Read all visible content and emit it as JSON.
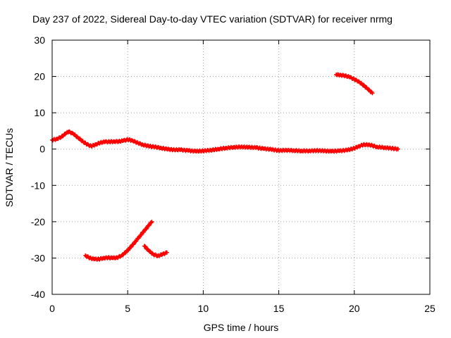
{
  "chart_data": {
    "type": "scatter",
    "title": "Day 237 of 2022, Sidereal Day-to-day VTEC variation (SDTVAR) for receiver nrmg",
    "xlabel": "GPS time / hours",
    "ylabel": "SDTVAR / TECUs",
    "xlim": [
      0,
      25
    ],
    "ylim": [
      -40,
      30
    ],
    "xticks": [
      0,
      5,
      10,
      15,
      20,
      25
    ],
    "yticks": [
      -40,
      -30,
      -20,
      -10,
      0,
      10,
      20,
      30
    ],
    "xtick_labels": [
      "0",
      "5",
      "10",
      "15",
      "20",
      "25"
    ],
    "ytick_labels": [
      "-40",
      "-30",
      "-20",
      "-10",
      "0",
      "10",
      "20",
      "30"
    ],
    "grid": true,
    "marker_color": "#ff0000",
    "series": [
      {
        "name": "main trace",
        "x": [
          0.0,
          0.3,
          0.6,
          0.9,
          1.1,
          1.4,
          1.7,
          2.0,
          2.3,
          2.6,
          2.9,
          3.2,
          3.5,
          3.8,
          4.1,
          4.4,
          4.7,
          5.0,
          5.3,
          5.6,
          6.0,
          6.4,
          6.8,
          7.2,
          7.6,
          8.0,
          8.5,
          9.0,
          9.5,
          10.0,
          10.5,
          11.0,
          11.5,
          12.0,
          12.5,
          13.0,
          13.5,
          14.0,
          14.5,
          15.0,
          15.5,
          16.0,
          16.5,
          17.0,
          17.5,
          18.0,
          18.5,
          19.0,
          19.5,
          20.0,
          20.3,
          20.6,
          21.0,
          21.5,
          22.0,
          22.5,
          22.9
        ],
        "y": [
          2.5,
          2.8,
          3.3,
          4.3,
          4.8,
          4.2,
          3.2,
          2.2,
          1.3,
          0.8,
          1.3,
          1.8,
          2.0,
          2.0,
          2.1,
          2.1,
          2.3,
          2.6,
          2.4,
          1.8,
          1.2,
          0.8,
          0.6,
          0.3,
          0.0,
          -0.2,
          -0.2,
          -0.4,
          -0.6,
          -0.5,
          -0.3,
          0.0,
          0.3,
          0.5,
          0.6,
          0.5,
          0.4,
          0.1,
          -0.1,
          -0.4,
          -0.3,
          -0.4,
          -0.5,
          -0.5,
          -0.4,
          -0.5,
          -0.6,
          -0.5,
          -0.3,
          0.2,
          0.8,
          1.2,
          1.2,
          0.6,
          0.4,
          0.2,
          0.0
        ]
      },
      {
        "name": "lower arc",
        "x": [
          2.2,
          2.5,
          2.8,
          3.1,
          3.4,
          3.7,
          4.0,
          4.3,
          4.6,
          4.9,
          5.2,
          5.5,
          5.8,
          6.1,
          6.4,
          6.6
        ],
        "y": [
          -29.3,
          -30.0,
          -30.3,
          -30.3,
          -30.0,
          -29.9,
          -30.0,
          -29.9,
          -29.3,
          -28.3,
          -27.0,
          -25.5,
          -24.0,
          -22.5,
          -21.0,
          -20.0
        ]
      },
      {
        "name": "lower short arc",
        "x": [
          6.1,
          6.4,
          6.7,
          7.0,
          7.3,
          7.6
        ],
        "y": [
          -26.7,
          -28.0,
          -29.0,
          -29.4,
          -29.0,
          -28.5
        ]
      },
      {
        "name": "upper arc",
        "x": [
          18.8,
          19.1,
          19.4,
          19.7,
          20.0,
          20.3,
          20.6,
          20.9,
          21.2
        ],
        "y": [
          20.5,
          20.4,
          20.2,
          19.8,
          19.2,
          18.6,
          17.6,
          16.5,
          15.4
        ]
      }
    ]
  }
}
